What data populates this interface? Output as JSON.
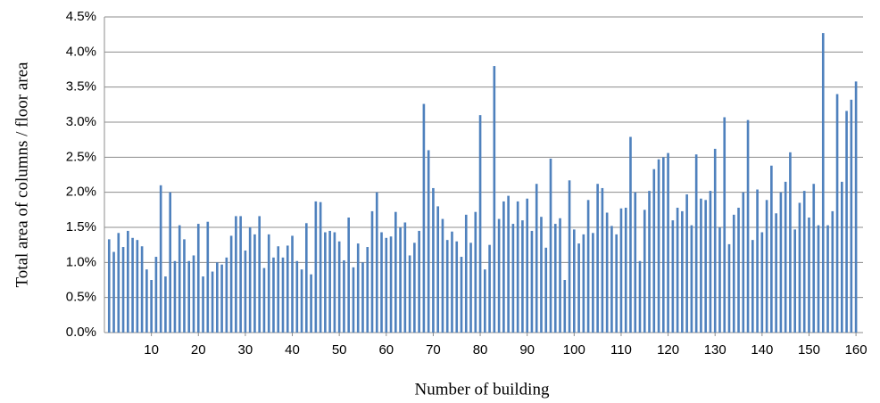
{
  "chart_data": {
    "type": "bar",
    "x_label": "Number  of building",
    "y_label": "Total area of columns  / floor area",
    "color": "#4f81bd",
    "grid": true,
    "x": [
      1,
      2,
      3,
      4,
      5,
      6,
      7,
      8,
      9,
      10,
      11,
      12,
      13,
      14,
      15,
      16,
      17,
      18,
      19,
      20,
      21,
      22,
      23,
      24,
      25,
      26,
      27,
      28,
      29,
      30,
      31,
      32,
      33,
      34,
      35,
      36,
      37,
      38,
      39,
      40,
      41,
      42,
      43,
      44,
      45,
      46,
      47,
      48,
      49,
      50,
      51,
      52,
      53,
      54,
      55,
      56,
      57,
      58,
      59,
      60,
      61,
      62,
      63,
      64,
      65,
      66,
      67,
      68,
      69,
      70,
      71,
      72,
      73,
      74,
      75,
      76,
      77,
      78,
      79,
      80,
      81,
      82,
      83,
      84,
      85,
      86,
      87,
      88,
      89,
      90,
      91,
      92,
      93,
      94,
      95,
      96,
      97,
      98,
      99,
      100,
      101,
      102,
      103,
      104,
      105,
      106,
      107,
      108,
      109,
      110,
      111,
      112,
      113,
      114,
      115,
      116,
      117,
      118,
      119,
      120,
      121,
      122,
      123,
      124,
      125,
      126,
      127,
      128,
      129,
      130,
      131,
      132,
      133,
      134,
      135,
      136,
      137,
      138,
      139,
      140,
      141,
      142,
      143,
      144,
      145,
      146,
      147,
      148,
      149,
      150,
      151,
      152,
      153,
      154,
      155,
      156,
      157,
      158,
      159,
      160
    ],
    "values": [
      1.33,
      1.15,
      1.42,
      1.22,
      1.45,
      1.35,
      1.32,
      1.23,
      0.9,
      0.75,
      1.08,
      2.1,
      0.8,
      2.0,
      1.02,
      1.53,
      1.33,
      1.02,
      1.1,
      1.55,
      0.8,
      1.58,
      0.87,
      1.0,
      0.97,
      1.07,
      1.38,
      1.66,
      1.66,
      1.17,
      1.5,
      1.4,
      1.66,
      0.92,
      1.4,
      1.07,
      1.23,
      1.07,
      1.24,
      1.38,
      1.02,
      0.9,
      1.56,
      0.83,
      1.87,
      1.86,
      1.43,
      1.45,
      1.43,
      1.3,
      1.03,
      1.64,
      0.93,
      1.27,
      1.0,
      1.22,
      1.73,
      2.0,
      1.43,
      1.35,
      1.37,
      1.72,
      1.5,
      1.57,
      1.1,
      1.28,
      1.45,
      3.26,
      2.6,
      2.06,
      1.8,
      1.62,
      1.32,
      1.44,
      1.3,
      1.08,
      1.68,
      1.28,
      1.72,
      3.1,
      0.9,
      1.25,
      3.8,
      1.62,
      1.87,
      1.95,
      1.55,
      1.87,
      1.6,
      1.91,
      1.45,
      2.12,
      1.65,
      1.21,
      2.48,
      1.55,
      1.63,
      0.75,
      2.17,
      1.47,
      1.27,
      1.4,
      1.89,
      1.42,
      2.12,
      2.06,
      1.71,
      1.52,
      1.4,
      1.77,
      1.78,
      2.79,
      2.0,
      1.02,
      1.75,
      2.02,
      2.33,
      2.47,
      2.5,
      2.56,
      1.6,
      1.78,
      1.73,
      1.97,
      1.53,
      2.54,
      1.91,
      1.89,
      2.02,
      2.62,
      1.5,
      3.07,
      1.26,
      1.68,
      1.78,
      2.0,
      3.03,
      1.32,
      2.04,
      1.43,
      1.89,
      2.38,
      1.7,
      2.0,
      2.15,
      2.57,
      1.47,
      1.85,
      2.02,
      1.64,
      2.12,
      1.53,
      4.27,
      1.53,
      1.73,
      3.4,
      2.15,
      3.16,
      3.32,
      3.58
    ],
    "xlim": [
      0,
      161.5
    ],
    "xticks": [
      10,
      20,
      30,
      40,
      50,
      60,
      70,
      80,
      90,
      100,
      110,
      120,
      130,
      140,
      150,
      160
    ],
    "ylim": [
      0,
      4.5
    ],
    "yticks": [
      {
        "value": 0,
        "label": "0.0%"
      },
      {
        "value": 0.5,
        "label": "0.5%"
      },
      {
        "value": 1,
        "label": "1.0%"
      },
      {
        "value": 1.5,
        "label": "1.5%"
      },
      {
        "value": 2,
        "label": "2.0%"
      },
      {
        "value": 2.5,
        "label": "2.5%"
      },
      {
        "value": 3,
        "label": "3.0%"
      },
      {
        "value": 3.5,
        "label": "3.5%"
      },
      {
        "value": 4,
        "label": "4.0%"
      },
      {
        "value": 4.5,
        "label": "4.5%"
      }
    ]
  }
}
